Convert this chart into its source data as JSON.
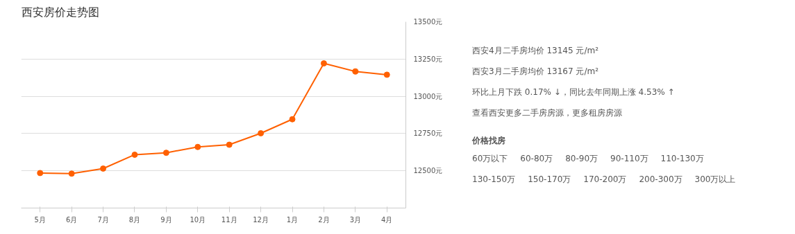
{
  "chart_data": [
    {
      "type": "line",
      "title": "西安房价走势图",
      "categories": [
        "5月",
        "6月",
        "7月",
        "8月",
        "9月",
        "10月",
        "11月",
        "12月",
        "1月",
        "2月",
        "3月",
        "4月"
      ],
      "series": [
        {
          "color": "#ff6000",
          "values": [
            12485,
            12481,
            12515,
            12608,
            12621,
            12660,
            12675,
            12752,
            12846,
            13221,
            13167,
            13145
          ]
        }
      ],
      "ylim": [
        12250,
        13500
      ],
      "yticks": [
        {
          "value": 12500,
          "label": "12500元"
        },
        {
          "value": 12750,
          "label": "12750元"
        },
        {
          "value": 13000,
          "label": "13000元"
        },
        {
          "value": 13250,
          "label": "13250元"
        },
        {
          "value": 13500,
          "label": "13500元"
        }
      ],
      "grid": "y",
      "marker": "circle",
      "line_style": "solid"
    },
    {
      "type": "other",
      "annotations": [
        "西安4月二手房均价 13145 元/m²",
        "西安3月二手房均价 13167 元/m²",
        "环比上月下跌 0.17% ↓，同比去年同期上涨 4.53% ↑",
        "查看西安更多二手房房源，更多租房房源",
        "价格找房",
        "60万以下",
        "60-80万",
        "80-90万",
        "90-110万",
        "110-130万",
        "130-150万",
        "150-170万",
        "170-200万",
        "200-300万",
        "300万以上"
      ]
    }
  ]
}
